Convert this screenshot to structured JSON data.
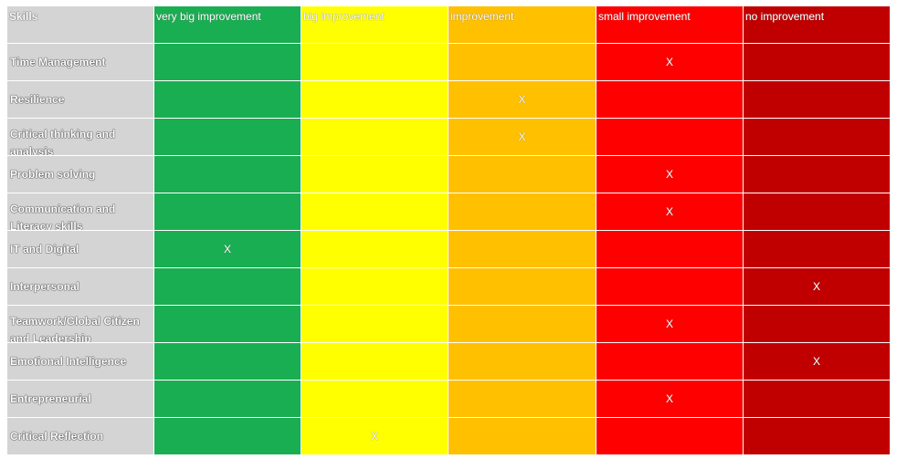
{
  "table": {
    "header": {
      "skills": "Skills",
      "columns": [
        "very big improvement",
        "big improvement",
        "improvement",
        "small improvement",
        "no improvement"
      ]
    },
    "colors": {
      "skills_column": "#d4d4d4",
      "columns": [
        "#1aae52",
        "#ffff00",
        "#ffc000",
        "#ff0000",
        "#c00000"
      ]
    },
    "rows": [
      {
        "skill": "Time Management",
        "marks": [
          "",
          "",
          "",
          "X",
          ""
        ]
      },
      {
        "skill": "Resilience",
        "marks": [
          "",
          "",
          "X",
          "",
          ""
        ]
      },
      {
        "skill": "Critical thinking and analysis",
        "marks": [
          "",
          "",
          "X",
          "",
          ""
        ]
      },
      {
        "skill": "Problem solving",
        "marks": [
          "",
          "",
          "",
          "X",
          ""
        ]
      },
      {
        "skill": "Communication and Literacy skills",
        "marks": [
          "",
          "",
          "",
          "X",
          ""
        ]
      },
      {
        "skill": "IT and Digital",
        "marks": [
          "X",
          "",
          "",
          "",
          ""
        ]
      },
      {
        "skill": "Interpersonal",
        "marks": [
          "",
          "",
          "",
          "",
          "X"
        ]
      },
      {
        "skill": "Teamwork/Global Citizen and Leadership",
        "marks": [
          "",
          "",
          "",
          "X",
          ""
        ]
      },
      {
        "skill": "Emotional Intelligence",
        "marks": [
          "",
          "",
          "",
          "",
          "X"
        ]
      },
      {
        "skill": "Entrepreneurial",
        "marks": [
          "",
          "",
          "",
          "X",
          ""
        ]
      },
      {
        "skill": "Critical Reflection",
        "marks": [
          "",
          "X",
          "",
          "",
          ""
        ]
      }
    ]
  }
}
